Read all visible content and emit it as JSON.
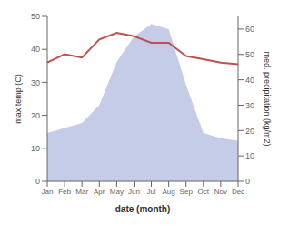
{
  "chart_data": {
    "type": "line",
    "categories": [
      "Jan",
      "Feb",
      "Mar",
      "Apr",
      "May",
      "Jun",
      "Jul",
      "Aug",
      "Sep",
      "Oct",
      "Nov",
      "Dec"
    ],
    "series": [
      {
        "type": "area",
        "color": "#c5cce8",
        "axis": "y2",
        "values": [
          19,
          21,
          23,
          30,
          47,
          57,
          62,
          60,
          38,
          19,
          17,
          16
        ]
      },
      {
        "type": "line",
        "color": "#c0504d",
        "values": [
          36,
          38.5,
          37.5,
          43,
          45,
          44,
          42,
          42,
          38,
          37,
          36,
          35.5
        ]
      }
    ],
    "xlabel": "date (month)",
    "ylabel": "max temp (C)",
    "y2label": "med. precipitation (kg/m2)",
    "ylim": [
      0,
      50
    ],
    "yticks": [
      0,
      10,
      20,
      30,
      40,
      50
    ],
    "y2lim": [
      0,
      65
    ],
    "y2ticks": [
      0,
      10,
      20,
      30,
      40,
      50,
      60
    ],
    "grid": false
  }
}
